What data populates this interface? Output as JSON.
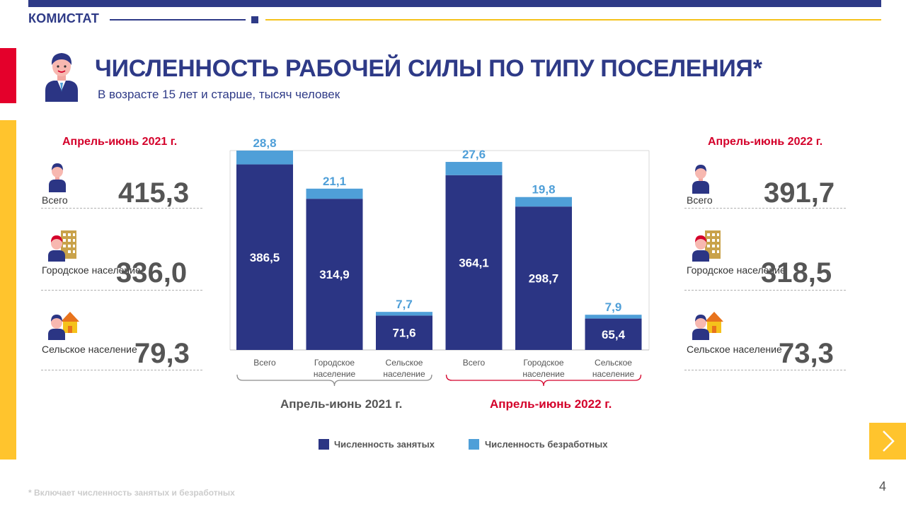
{
  "header": {
    "brand": "КОМИСТАТ",
    "page_number": "4"
  },
  "slide": {
    "title": "ЧИСЛЕННОСТЬ РАБОЧЕЙ СИЛЫ ПО ТИПУ ПОСЕЛЕНИЯ*",
    "subtitle": "В возрасте 15 лет и старше, тысяч человек",
    "footnote": "* Включает численность занятых и безработных"
  },
  "left_panel": {
    "period": "Апрель-июнь 2021 г.",
    "stats": [
      {
        "label": "Всего",
        "value": "415,3",
        "icon": "person-icon"
      },
      {
        "label": "Городское население",
        "value": "336,0",
        "icon": "city-person-icon"
      },
      {
        "label": "Сельское население",
        "value": "79,3",
        "icon": "rural-person-icon"
      }
    ]
  },
  "right_panel": {
    "period": "Апрель-июнь 2022 г.",
    "stats": [
      {
        "label": "Всего",
        "value": "391,7",
        "icon": "person-icon"
      },
      {
        "label": "Городское население",
        "value": "318,5",
        "icon": "city-person-icon"
      },
      {
        "label": "Сельское население",
        "value": "73,3",
        "icon": "rural-person-icon"
      }
    ]
  },
  "colors": {
    "employed": "#2b3584",
    "unemployed": "#4f9fd8",
    "accent_red": "#d4002a",
    "navy": "#2e3a87",
    "yellow": "#ffc42d"
  },
  "chart_data": {
    "type": "bar",
    "stacked": true,
    "categories": [
      "Всего",
      "Городское население",
      "Сельское население",
      "Всего",
      "Городское население",
      "Сельское население"
    ],
    "groups": [
      {
        "label": "Апрель-июнь 2021 г.",
        "category_indices": [
          0,
          1,
          2
        ]
      },
      {
        "label": "Апрель-июнь 2022 г.",
        "category_indices": [
          3,
          4,
          5
        ]
      }
    ],
    "series": [
      {
        "name": "Численность занятых",
        "values": [
          386.5,
          314.9,
          71.6,
          364.1,
          298.7,
          65.4
        ],
        "labels": [
          "386,5",
          "314,9",
          "71,6",
          "364,1",
          "298,7",
          "65,4"
        ]
      },
      {
        "name": "Численность безработных",
        "values": [
          28.8,
          21.1,
          7.7,
          27.6,
          19.8,
          7.9
        ],
        "labels": [
          "28,8",
          "21,1",
          "7,7",
          "27,6",
          "19,8",
          "7,9"
        ]
      }
    ],
    "ylim": [
      0,
      415.3
    ],
    "grid": false,
    "legend_position": "bottom"
  }
}
